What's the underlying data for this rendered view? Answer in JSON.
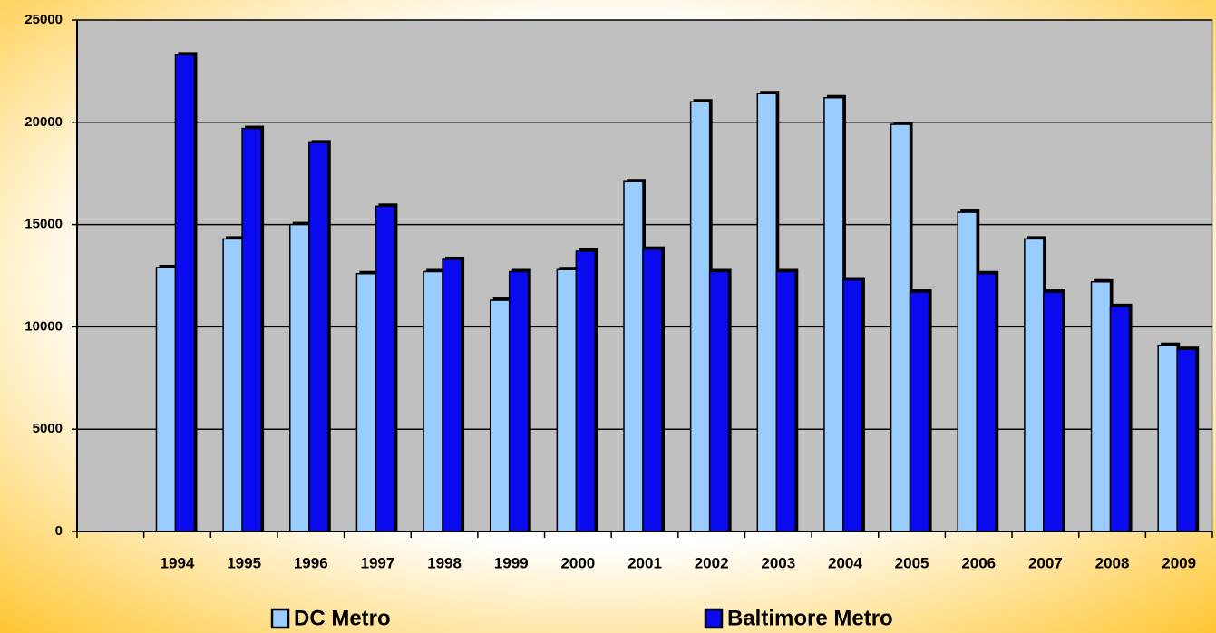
{
  "chart_data": {
    "type": "bar",
    "categories": [
      null,
      "1994",
      "1995",
      "1996",
      "1997",
      "1998",
      "1999",
      "2000",
      "2001",
      "2002",
      "2003",
      "2004",
      "2005",
      "2006",
      "2007",
      "2008",
      "2009"
    ],
    "series": [
      {
        "name": "DC Metro",
        "color": "#99ccff",
        "values": [
          null,
          12900,
          14300,
          15000,
          12600,
          12700,
          11300,
          12800,
          17100,
          21000,
          21400,
          21200,
          19900,
          15600,
          14300,
          12200,
          9100
        ]
      },
      {
        "name": "Baltimore Metro",
        "color": "#0a0aee",
        "values": [
          null,
          23300,
          19700,
          19000,
          15900,
          13300,
          12700,
          13700,
          13800,
          12700,
          12700,
          12300,
          11700,
          12600,
          11700,
          11000,
          8900
        ]
      }
    ],
    "ylim": [
      0,
      25000
    ],
    "yticks": [
      0,
      5000,
      10000,
      15000,
      20000,
      25000
    ],
    "grid": true
  }
}
